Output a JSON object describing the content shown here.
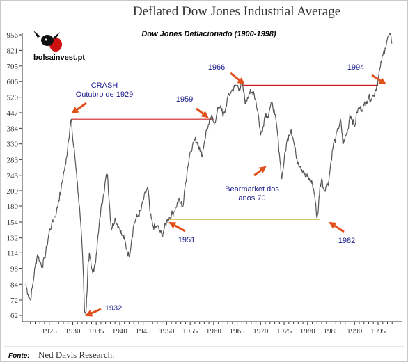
{
  "title": "Deflated Dow Jones Industrial Average",
  "chart_data": {
    "type": "line",
    "subtitle": "Dow Jones Deflacionado (1900-1998)",
    "y_scale": "log",
    "ylim": [
      59,
      1000
    ],
    "xlim": [
      1920,
      1999
    ],
    "y_ticks": [
      956,
      821,
      705,
      606,
      520,
      447,
      384,
      330,
      283,
      243,
      209,
      180,
      154,
      132,
      114,
      98,
      84,
      72,
      62
    ],
    "x_ticks": [
      1925,
      1930,
      1935,
      1940,
      1945,
      1950,
      1955,
      1960,
      1965,
      1970,
      1975,
      1980,
      1985,
      1990,
      1995
    ],
    "grid": false,
    "series": [
      {
        "x": [
          1920.0,
          1920.5,
          1921.0,
          1921.5,
          1922.0,
          1922.5,
          1923.0,
          1923.5,
          1924.0,
          1924.5,
          1925.0,
          1925.5,
          1926.0,
          1926.5,
          1927.0,
          1927.5,
          1928.0,
          1928.5,
          1929.0,
          1929.4,
          1929.7,
          1930.0,
          1930.4,
          1930.8,
          1931.2,
          1931.6,
          1932.0,
          1932.3,
          1932.5,
          1932.8,
          1933.0,
          1933.3,
          1933.6,
          1934.0,
          1934.5,
          1935.0,
          1935.5,
          1936.0,
          1936.5,
          1937.0,
          1937.4,
          1937.8,
          1938.2,
          1938.6,
          1939.0,
          1939.5,
          1940.0,
          1940.5,
          1941.0,
          1941.5,
          1942.0,
          1942.5,
          1943.0,
          1943.5,
          1944.0,
          1944.5,
          1945.0,
          1945.5,
          1946.0,
          1946.5,
          1947.0,
          1947.5,
          1948.0,
          1948.5,
          1949.0,
          1949.5,
          1950.0,
          1950.5,
          1951.0,
          1951.5,
          1952.0,
          1952.5,
          1953.0,
          1953.5,
          1954.0,
          1954.5,
          1955.0,
          1955.5,
          1956.0,
          1956.5,
          1957.0,
          1957.5,
          1958.0,
          1958.5,
          1959.0,
          1959.5,
          1960.0,
          1960.5,
          1961.0,
          1961.5,
          1962.0,
          1962.5,
          1963.0,
          1963.5,
          1964.0,
          1964.5,
          1965.0,
          1965.5,
          1966.0,
          1966.4,
          1966.8,
          1967.2,
          1967.6,
          1968.0,
          1968.5,
          1969.0,
          1969.5,
          1970.0,
          1970.5,
          1971.0,
          1971.5,
          1972.0,
          1972.5,
          1973.0,
          1973.5,
          1974.0,
          1974.5,
          1975.0,
          1975.5,
          1976.0,
          1976.5,
          1977.0,
          1977.5,
          1978.0,
          1978.5,
          1979.0,
          1979.5,
          1980.0,
          1980.5,
          1981.0,
          1981.5,
          1982.0,
          1982.3,
          1982.6,
          1983.0,
          1983.5,
          1984.0,
          1984.5,
          1985.0,
          1985.5,
          1986.0,
          1986.5,
          1987.0,
          1987.5,
          1987.8,
          1988.2,
          1988.6,
          1989.0,
          1989.5,
          1990.0,
          1990.5,
          1991.0,
          1991.5,
          1992.0,
          1992.5,
          1993.0,
          1993.5,
          1994.0,
          1994.5,
          1995.0,
          1995.5,
          1996.0,
          1996.5,
          1997.0,
          1997.5,
          1998.0
        ],
        "y": [
          84,
          76,
          72,
          84,
          100,
          112,
          105,
          100,
          108,
          122,
          140,
          150,
          160,
          168,
          190,
          210,
          245,
          270,
          330,
          385,
          420,
          345,
          300,
          250,
          200,
          160,
          120,
          88,
          66,
          62,
          75,
          105,
          112,
          98,
          95,
          112,
          140,
          175,
          200,
          235,
          245,
          185,
          145,
          150,
          160,
          150,
          145,
          135,
          130,
          118,
          110,
          128,
          150,
          160,
          165,
          172,
          190,
          205,
          215,
          165,
          150,
          145,
          148,
          142,
          135,
          145,
          155,
          160,
          165,
          170,
          178,
          190,
          185,
          180,
          225,
          265,
          305,
          325,
          345,
          335,
          320,
          290,
          335,
          380,
          400,
          430,
          410,
          420,
          470,
          480,
          430,
          460,
          520,
          540,
          560,
          575,
          585,
          565,
          600,
          545,
          490,
          520,
          545,
          540,
          550,
          500,
          440,
          360,
          390,
          445,
          430,
          470,
          490,
          440,
          380,
          300,
          235,
          280,
          330,
          360,
          380,
          340,
          300,
          275,
          265,
          255,
          240,
          240,
          230,
          225,
          200,
          160,
          175,
          215,
          235,
          210,
          220,
          230,
          280,
          330,
          350,
          380,
          420,
          330,
          340,
          360,
          380,
          440,
          420,
          390,
          450,
          470,
          460,
          480,
          500,
          520,
          510,
          530,
          560,
          620,
          700,
          780,
          840,
          920,
          960,
          880
        ]
      }
    ],
    "reference_lines": [
      {
        "x": [
          1929.8,
          1960.0
        ],
        "y": 420,
        "color": "#cc2222"
      },
      {
        "x": [
          1966.0,
          1995.0
        ],
        "y": 585,
        "color": "#cc2222"
      },
      {
        "x": [
          1950.0,
          1982.5
        ],
        "y": 158,
        "color": "#c8b432"
      }
    ],
    "annotations": [
      {
        "lines": [
          "CRASH",
          "Outubro de 1929"
        ]
      },
      {
        "lines": [
          "1959"
        ]
      },
      {
        "lines": [
          "1966"
        ]
      },
      {
        "lines": [
          "1994"
        ]
      },
      {
        "lines": [
          "Bearmarket dos",
          "anos 70"
        ]
      },
      {
        "lines": [
          "1951"
        ]
      },
      {
        "lines": [
          "1982"
        ]
      },
      {
        "lines": [
          "1932"
        ]
      }
    ],
    "line_color": "#555555",
    "arrow_color": "#e0501a"
  },
  "logo": {
    "text": "bolsainvest.pt",
    "icon": "bull-head-icon"
  },
  "source": {
    "label": "Fonte:",
    "text": "Ned Davis Research."
  }
}
